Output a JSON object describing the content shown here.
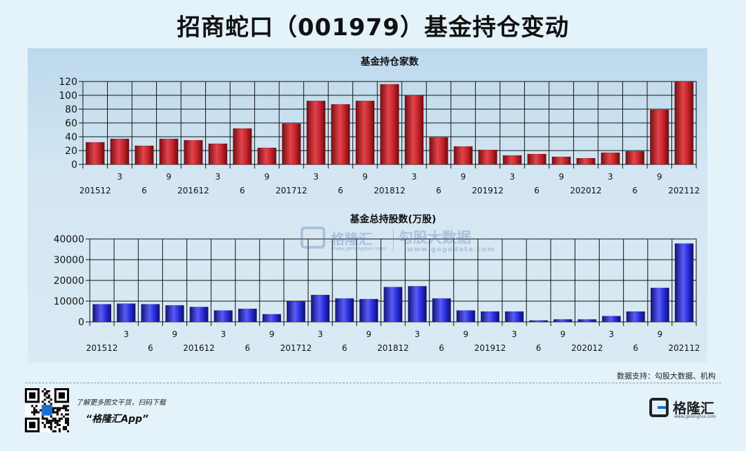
{
  "page": {
    "title": "招商蛇口（001979）基金持仓变动",
    "source": "数据支持：勾股大数据、机构",
    "footer_tip": "了解更多图文干货，扫码下载",
    "footer_app": "“格隆汇App”",
    "logo_text": "格隆汇",
    "logo_url": "www.gelonghui.com",
    "watermark": {
      "brand": "格隆汇",
      "brand_url": "www.gelonghui.com",
      "text": "勾股大数据",
      "url": "www.gogudata.com"
    }
  },
  "chart_data": [
    {
      "type": "bar",
      "title": "基金持仓家数",
      "color": "#c8252c",
      "categories": [
        "201512",
        "201603",
        "201606",
        "201609",
        "201612",
        "201703",
        "201706",
        "201709",
        "201712",
        "201803",
        "201806",
        "201809",
        "201812",
        "201903",
        "201906",
        "201909",
        "201912",
        "202003",
        "202006",
        "202009",
        "202012",
        "202103",
        "202106",
        "202109",
        "202112"
      ],
      "tick_labels_top": [
        "",
        "3",
        "",
        "9",
        "",
        "3",
        "",
        "9",
        "",
        "3",
        "",
        "9",
        "",
        "3",
        "",
        "9",
        "",
        "3",
        "",
        "9",
        "",
        "3",
        "",
        "9",
        ""
      ],
      "tick_labels_bottom": [
        "201512",
        "",
        "6",
        "",
        "201612",
        "",
        "6",
        "",
        "201712",
        "",
        "6",
        "",
        "201812",
        "",
        "6",
        "",
        "201912",
        "",
        "6",
        "",
        "202012",
        "",
        "6",
        "",
        "202112"
      ],
      "values": [
        32,
        37,
        27,
        37,
        35,
        30,
        52,
        24,
        59,
        92,
        87,
        92,
        116,
        100,
        39,
        26,
        21,
        13,
        15,
        11,
        9,
        17,
        19,
        79,
        120
      ],
      "ylim": [
        0,
        120
      ],
      "yticks": [
        0,
        20,
        40,
        60,
        80,
        100,
        120
      ],
      "grid": true
    },
    {
      "type": "bar",
      "title": "基金总持股数(万股)",
      "color": "#2a2ee0",
      "categories": [
        "201512",
        "201603",
        "201606",
        "201609",
        "201612",
        "201703",
        "201706",
        "201709",
        "201712",
        "201803",
        "201806",
        "201809",
        "201812",
        "201903",
        "201906",
        "201909",
        "201912",
        "202003",
        "202006",
        "202009",
        "202012",
        "202103",
        "202106",
        "202109",
        "202112"
      ],
      "tick_labels_top": [
        "",
        "3",
        "",
        "9",
        "",
        "3",
        "",
        "9",
        "",
        "3",
        "",
        "9",
        "",
        "3",
        "",
        "9",
        "",
        "3",
        "",
        "9",
        "",
        "3",
        "",
        "9",
        ""
      ],
      "tick_labels_bottom": [
        "201512",
        "",
        "6",
        "",
        "201612",
        "",
        "6",
        "",
        "201712",
        "",
        "6",
        "",
        "201812",
        "",
        "6",
        "",
        "201912",
        "",
        "6",
        "",
        "202012",
        "",
        "6",
        "",
        "202112"
      ],
      "values": [
        8500,
        8800,
        8500,
        8000,
        7200,
        5500,
        6300,
        3700,
        9800,
        13000,
        11300,
        11000,
        16800,
        17200,
        11300,
        5500,
        5000,
        5000,
        700,
        1200,
        1200,
        2800,
        5000,
        16400,
        37800
      ],
      "ylim": [
        0,
        40000
      ],
      "yticks": [
        0,
        10000,
        20000,
        30000,
        40000
      ],
      "grid": true
    }
  ]
}
